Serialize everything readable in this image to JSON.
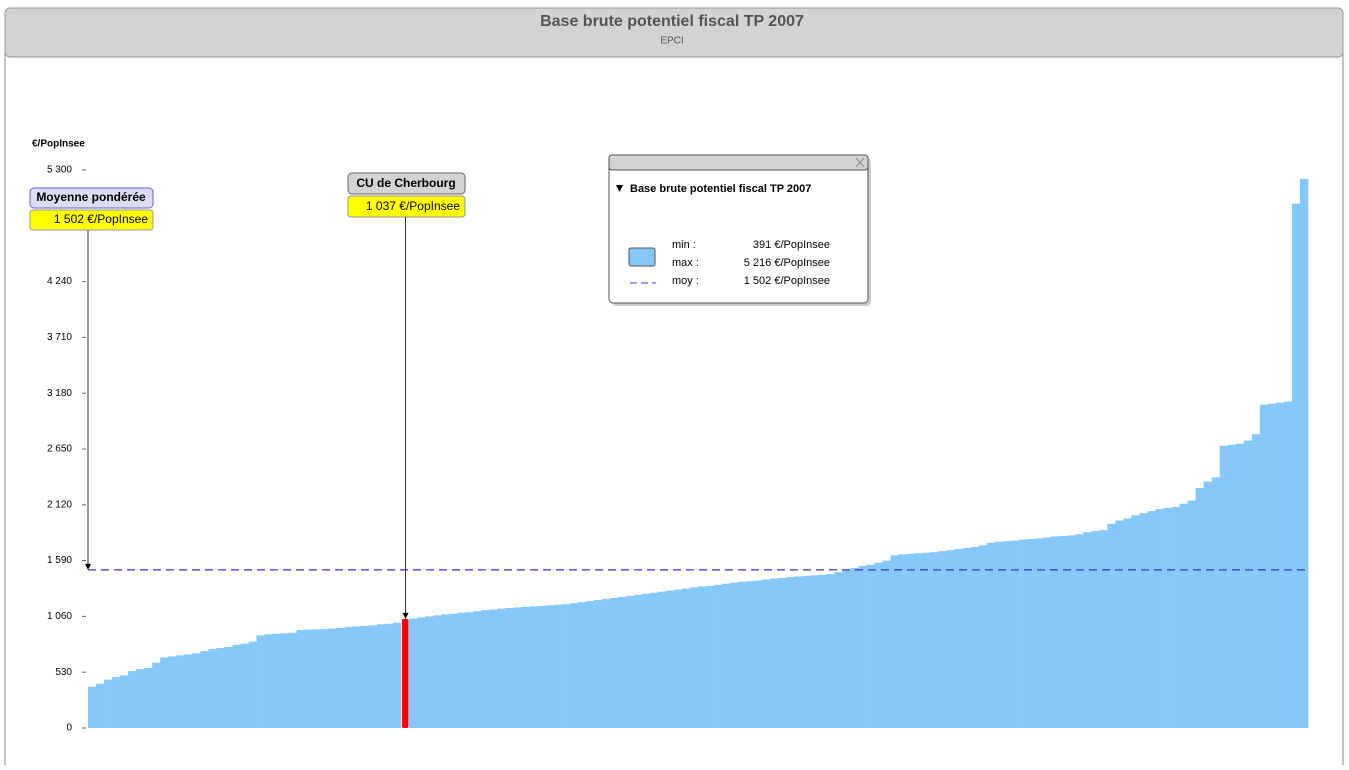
{
  "chart_data": {
    "type": "bar",
    "title": "Base brute potentiel fiscal TP 2007",
    "subtitle": "EPCI",
    "y_label": "€/PopInsee",
    "color": "#87c8fa",
    "ylim": [
      0,
      5300
    ],
    "yticks": [
      0,
      530,
      {
        "value": 1060,
        "label": "1 060"
      },
      {
        "value": 1590,
        "label": "1 590"
      },
      {
        "value": 2120,
        "label": "2 120"
      },
      {
        "value": 2650,
        "label": "2 650"
      },
      {
        "value": 3180,
        "label": "3 180"
      },
      {
        "value": 3710,
        "label": "3 710"
      },
      {
        "value": 4240,
        "label": "4 240"
      },
      {
        "value": 5300,
        "label": "5 300"
      }
    ],
    "values": [
      391,
      420,
      460,
      485,
      500,
      540,
      560,
      570,
      620,
      670,
      680,
      690,
      700,
      710,
      730,
      750,
      760,
      770,
      790,
      800,
      820,
      880,
      890,
      895,
      900,
      905,
      930,
      935,
      938,
      940,
      945,
      950,
      960,
      965,
      970,
      975,
      985,
      990,
      1000,
      1037,
      1040,
      1050,
      1060,
      1070,
      1080,
      1085,
      1095,
      1100,
      1110,
      1120,
      1125,
      1135,
      1140,
      1145,
      1150,
      1155,
      1160,
      1165,
      1170,
      1175,
      1185,
      1195,
      1205,
      1215,
      1225,
      1235,
      1245,
      1255,
      1265,
      1275,
      1285,
      1295,
      1305,
      1315,
      1325,
      1335,
      1345,
      1350,
      1360,
      1370,
      1380,
      1390,
      1395,
      1400,
      1410,
      1420,
      1425,
      1435,
      1440,
      1445,
      1450,
      1455,
      1460,
      1480,
      1500,
      1520,
      1540,
      1550,
      1570,
      1590,
      1640,
      1650,
      1655,
      1660,
      1665,
      1670,
      1680,
      1690,
      1700,
      1710,
      1720,
      1735,
      1760,
      1770,
      1775,
      1780,
      1790,
      1795,
      1800,
      1810,
      1820,
      1825,
      1830,
      1840,
      1860,
      1870,
      1880,
      1940,
      1970,
      1990,
      2020,
      2040,
      2060,
      2080,
      2090,
      2100,
      2130,
      2160,
      2280,
      2340,
      2380,
      2680,
      2690,
      2700,
      2730,
      2790,
      3070,
      3080,
      3090,
      3100,
      4980,
      5216
    ],
    "highlight": {
      "index": 39,
      "name": "CU de Cherbourg",
      "value_label": "1 037 €/PopInsee",
      "color": "#ff0000"
    },
    "mean": {
      "name": "Moyenne pondérée",
      "value": 1502,
      "value_label": "1 502 €/PopInsee",
      "color": "#3333cc"
    },
    "legend": {
      "title": "Base brute potentiel fiscal TP 2007",
      "rows": [
        {
          "label": "min :",
          "value_label": "391 €/PopInsee"
        },
        {
          "label": "max :",
          "value_label": "5 216 €/PopInsee"
        },
        {
          "label": "moy :",
          "value_label": "1 502 €/PopInsee"
        }
      ]
    }
  }
}
